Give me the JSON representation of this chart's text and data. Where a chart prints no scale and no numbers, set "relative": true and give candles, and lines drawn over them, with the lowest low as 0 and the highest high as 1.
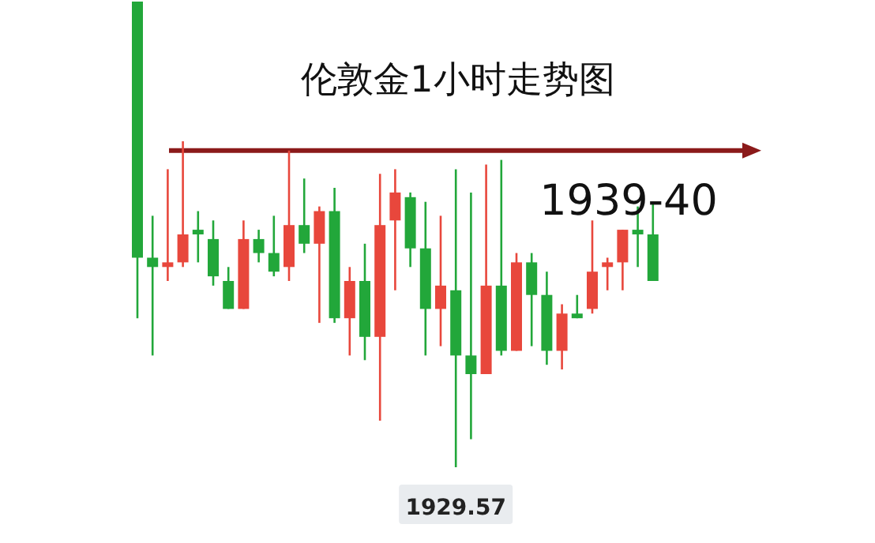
{
  "chart_data": {
    "type": "candlestick",
    "title": "伦敦金1小时走势图",
    "relative": true,
    "categories": [
      null,
      null,
      null,
      null,
      null,
      null,
      null,
      null,
      null,
      null,
      null,
      null,
      null,
      null,
      null,
      null,
      null,
      null,
      null,
      null,
      null,
      null,
      null,
      null,
      null,
      null,
      null,
      null,
      null,
      null,
      null,
      null,
      null,
      null,
      null
    ],
    "ohlc": [
      [
        1,
        1,
        0.32,
        0.45
      ],
      [
        0.45,
        0.54,
        0.24,
        0.43
      ],
      [
        0.43,
        0.64,
        0.4,
        0.44
      ],
      [
        0.44,
        0.7,
        0.43,
        0.5
      ],
      [
        0.51,
        0.55,
        0.44,
        0.5
      ],
      [
        0.49,
        0.53,
        0.39,
        0.41
      ],
      [
        0.4,
        0.43,
        0.34,
        0.34
      ],
      [
        0.34,
        0.53,
        0.34,
        0.49
      ],
      [
        0.49,
        0.51,
        0.44,
        0.46
      ],
      [
        0.46,
        0.54,
        0.41,
        0.42
      ],
      [
        0.43,
        0.68,
        0.4,
        0.52
      ],
      [
        0.52,
        0.62,
        0.46,
        0.48
      ],
      [
        0.48,
        0.56,
        0.31,
        0.55
      ],
      [
        0.55,
        0.6,
        0.31,
        0.32
      ],
      [
        0.32,
        0.43,
        0.24,
        0.4
      ],
      [
        0.4,
        0.48,
        0.23,
        0.28
      ],
      [
        0.28,
        0.63,
        0.1,
        0.52
      ],
      [
        0.53,
        0.64,
        0.38,
        0.59
      ],
      [
        0.58,
        0.59,
        0.43,
        0.47
      ],
      [
        0.47,
        0.57,
        0.24,
        0.34
      ],
      [
        0.34,
        0.54,
        0.26,
        0.39
      ],
      [
        0.38,
        0.64,
        0,
        0.24
      ],
      [
        0.24,
        0.59,
        0.06,
        0.2
      ],
      [
        0.2,
        0.65,
        0.2,
        0.39
      ],
      [
        0.39,
        0.66,
        0.24,
        0.25
      ],
      [
        0.25,
        0.46,
        0.25,
        0.44
      ],
      [
        0.44,
        0.46,
        0.26,
        0.37
      ],
      [
        0.37,
        0.42,
        0.22,
        0.25
      ],
      [
        0.25,
        0.35,
        0.21,
        0.33
      ],
      [
        0.33,
        0.37,
        0.32,
        0.32
      ],
      [
        0.34,
        0.53,
        0.33,
        0.42
      ],
      [
        0.43,
        0.45,
        0.38,
        0.44
      ],
      [
        0.44,
        0.51,
        0.38,
        0.51
      ],
      [
        0.51,
        0.56,
        0.43,
        0.5
      ],
      [
        0.5,
        0.57,
        0.4,
        0.4
      ]
    ],
    "colors": [
      "#22a73a",
      "#22a73a",
      "#e8473c",
      "#e8473c",
      "#22a73a",
      "#22a73a",
      "#22a73a",
      "#e8473c",
      "#22a73a",
      "#22a73a",
      "#e8473c",
      "#22a73a",
      "#e8473c",
      "#22a73a",
      "#e8473c",
      "#22a73a",
      "#e8473c",
      "#e8473c",
      "#22a73a",
      "#22a73a",
      "#e8473c",
      "#22a73a",
      "#22a73a",
      "#e8473c",
      "#22a73a",
      "#e8473c",
      "#22a73a",
      "#22a73a",
      "#e8473c",
      "#22a73a",
      "#e8473c",
      "#e8473c",
      "#e8473c",
      "#22a73a",
      "#22a73a"
    ],
    "ref_lines": [
      {
        "axis": "y",
        "value": 0.68,
        "color": "#8b1a1a"
      }
    ],
    "annotations": [
      "1939-40",
      {
        "text": "1929.57",
        "y": 0
      }
    ]
  }
}
